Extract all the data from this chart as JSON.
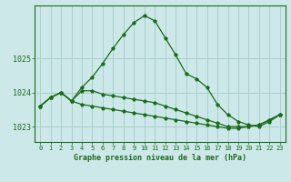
{
  "title": "Graphe pression niveau de la mer (hPa)",
  "background_color": "#cce8e8",
  "grid_color": "#aacfcf",
  "line_color": "#1a6b1a",
  "x_ticks": [
    0,
    1,
    2,
    3,
    4,
    5,
    6,
    7,
    8,
    9,
    10,
    11,
    12,
    13,
    14,
    15,
    16,
    17,
    18,
    19,
    20,
    21,
    22,
    23
  ],
  "y_ticks": [
    1023,
    1024,
    1025
  ],
  "ylim": [
    1022.55,
    1026.55
  ],
  "xlim": [
    -0.5,
    23.5
  ],
  "series2": [
    1023.6,
    1023.85,
    1024.0,
    1023.75,
    1024.15,
    1024.45,
    1024.85,
    1025.3,
    1025.7,
    1026.05,
    1026.25,
    1026.1,
    1025.6,
    1025.1,
    1024.55,
    1024.4,
    1024.15,
    1023.65,
    1023.35,
    1023.15,
    1023.05,
    1023.0,
    1023.15,
    1023.35
  ],
  "series1": [
    1023.6,
    1023.85,
    1024.0,
    1023.75,
    1024.05,
    1024.05,
    1023.95,
    1023.9,
    1023.85,
    1023.8,
    1023.75,
    1023.7,
    1023.6,
    1023.5,
    1023.4,
    1023.3,
    1023.2,
    1023.1,
    1023.0,
    1023.0,
    1023.0,
    1023.05,
    1023.2,
    1023.35
  ],
  "series3": [
    1023.6,
    1023.85,
    1024.0,
    1023.75,
    1023.65,
    1023.6,
    1023.55,
    1023.5,
    1023.45,
    1023.4,
    1023.35,
    1023.3,
    1023.25,
    1023.2,
    1023.15,
    1023.1,
    1023.05,
    1023.0,
    1022.95,
    1022.95,
    1023.0,
    1023.05,
    1023.2,
    1023.35
  ],
  "ylabel_fontsize": 6,
  "xlabel_fontsize": 5,
  "title_fontsize": 6,
  "tick_fontsize": 5
}
